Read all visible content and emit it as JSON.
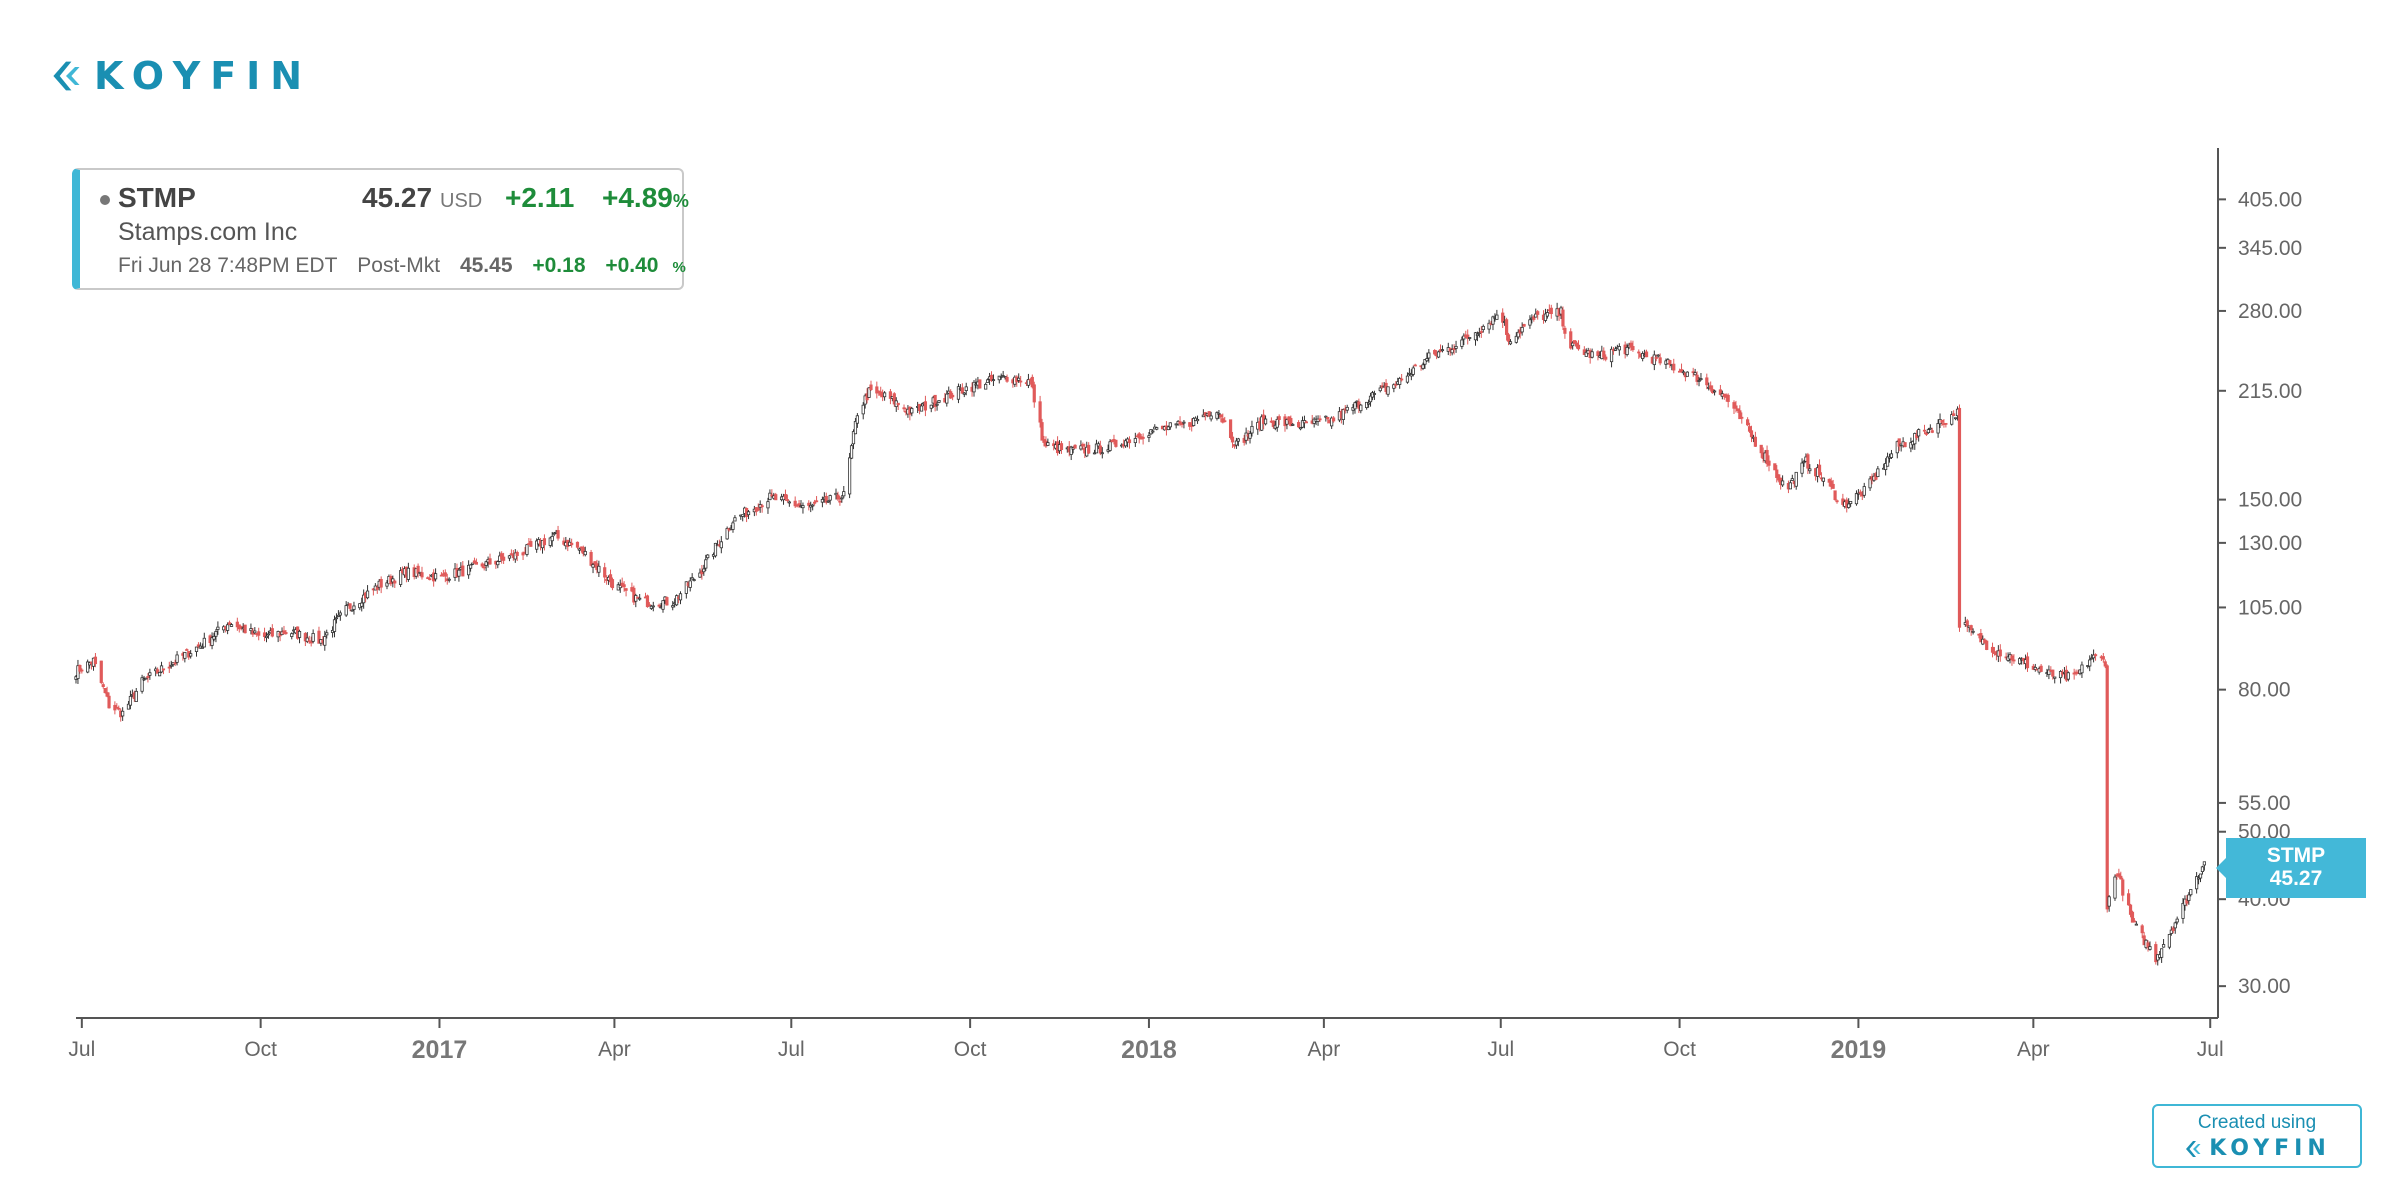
{
  "brand": {
    "logo_text": "KOYFIN",
    "accent_color": "#3fb7d6",
    "logo_color": "#1a8fb2",
    "created_using": "Created using"
  },
  "quote": {
    "symbol": "STMP",
    "price": "45.27",
    "currency": "USD",
    "change": "+2.11",
    "change_pct": "+4.89",
    "pct_sign": "%",
    "name": "Stamps.com Inc",
    "timestamp": "Fri Jun 28 7:48PM EDT",
    "post_label": "Post-Mkt",
    "post_price": "45.45",
    "post_change": "+0.18",
    "post_change_pct": "+0.40",
    "positive_color": "#1e8c3a"
  },
  "price_tag": {
    "symbol": "STMP",
    "value": "45.27"
  },
  "chart_data": {
    "type": "candlestick",
    "title": "",
    "xlabel": "",
    "ylabel": "",
    "y_scale": "log",
    "ylim": [
      27,
      480
    ],
    "y_ticks": [
      "405.00",
      "345.00",
      "280.00",
      "215.00",
      "150.00",
      "130.00",
      "105.00",
      "80.00",
      "55.00",
      "50.00",
      "40.00",
      "30.00"
    ],
    "x_range": [
      "2016-06-28",
      "2019-07-05"
    ],
    "x_ticks": [
      {
        "date": "2016-07-01",
        "label": "Jul",
        "major": false
      },
      {
        "date": "2016-10-01",
        "label": "Oct",
        "major": false
      },
      {
        "date": "2017-01-01",
        "label": "2017",
        "major": true
      },
      {
        "date": "2017-04-01",
        "label": "Apr",
        "major": false
      },
      {
        "date": "2017-07-01",
        "label": "Jul",
        "major": false
      },
      {
        "date": "2017-10-01",
        "label": "Oct",
        "major": false
      },
      {
        "date": "2018-01-01",
        "label": "2018",
        "major": true
      },
      {
        "date": "2018-04-01",
        "label": "Apr",
        "major": false
      },
      {
        "date": "2018-07-01",
        "label": "Jul",
        "major": false
      },
      {
        "date": "2018-10-01",
        "label": "Oct",
        "major": false
      },
      {
        "date": "2019-01-01",
        "label": "2019",
        "major": true
      },
      {
        "date": "2019-04-01",
        "label": "Apr",
        "major": false
      },
      {
        "date": "2019-07-01",
        "label": "Jul",
        "major": false
      }
    ],
    "up_color": "#333333",
    "down_color": "#e05a5a",
    "close_path": [
      [
        "2016-06-28",
        85
      ],
      [
        "2016-07-07",
        88
      ],
      [
        "2016-07-15",
        76
      ],
      [
        "2016-07-22",
        74
      ],
      [
        "2016-08-01",
        82
      ],
      [
        "2016-08-15",
        87
      ],
      [
        "2016-09-01",
        93
      ],
      [
        "2016-09-15",
        100
      ],
      [
        "2016-10-01",
        95
      ],
      [
        "2016-10-15",
        97
      ],
      [
        "2016-11-01",
        94
      ],
      [
        "2016-11-15",
        105
      ],
      [
        "2016-12-01",
        113
      ],
      [
        "2016-12-15",
        118
      ],
      [
        "2017-01-02",
        116
      ],
      [
        "2017-01-20",
        120
      ],
      [
        "2017-02-10",
        125
      ],
      [
        "2017-03-01",
        133
      ],
      [
        "2017-03-15",
        127
      ],
      [
        "2017-04-01",
        113
      ],
      [
        "2017-04-15",
        107
      ],
      [
        "2017-05-01",
        107
      ],
      [
        "2017-05-15",
        118
      ],
      [
        "2017-06-01",
        140
      ],
      [
        "2017-06-20",
        151
      ],
      [
        "2017-07-10",
        146
      ],
      [
        "2017-07-28",
        152
      ],
      [
        "2017-08-04",
        200
      ],
      [
        "2017-08-10",
        214
      ],
      [
        "2017-08-20",
        210
      ],
      [
        "2017-09-01",
        200
      ],
      [
        "2017-09-15",
        209
      ],
      [
        "2017-10-01",
        218
      ],
      [
        "2017-10-20",
        225
      ],
      [
        "2017-11-01",
        222
      ],
      [
        "2017-11-08",
        180
      ],
      [
        "2017-11-20",
        176
      ],
      [
        "2017-12-10",
        178
      ],
      [
        "2018-01-01",
        188
      ],
      [
        "2018-01-20",
        192
      ],
      [
        "2018-02-05",
        203
      ],
      [
        "2018-02-15",
        180
      ],
      [
        "2018-03-01",
        195
      ],
      [
        "2018-03-20",
        192
      ],
      [
        "2018-04-05",
        195
      ],
      [
        "2018-04-20",
        207
      ],
      [
        "2018-05-10",
        222
      ],
      [
        "2018-05-25",
        240
      ],
      [
        "2018-06-10",
        252
      ],
      [
        "2018-06-25",
        270
      ],
      [
        "2018-07-01",
        280
      ],
      [
        "2018-07-05",
        255
      ],
      [
        "2018-07-20",
        275
      ],
      [
        "2018-08-01",
        278
      ],
      [
        "2018-08-05",
        250
      ],
      [
        "2018-08-20",
        240
      ],
      [
        "2018-09-01",
        248
      ],
      [
        "2018-09-20",
        238
      ],
      [
        "2018-10-10",
        225
      ],
      [
        "2018-10-25",
        210
      ],
      [
        "2018-11-10",
        180
      ],
      [
        "2018-11-25",
        155
      ],
      [
        "2018-12-05",
        170
      ],
      [
        "2018-12-15",
        160
      ],
      [
        "2018-12-24",
        147
      ],
      [
        "2019-01-05",
        155
      ],
      [
        "2019-01-20",
        178
      ],
      [
        "2019-02-10",
        192
      ],
      [
        "2019-02-21",
        200
      ],
      [
        "2019-02-22",
        100
      ],
      [
        "2019-03-10",
        92
      ],
      [
        "2019-03-25",
        88
      ],
      [
        "2019-04-10",
        84
      ],
      [
        "2019-04-22",
        83
      ],
      [
        "2019-05-01",
        89
      ],
      [
        "2019-05-08",
        88
      ],
      [
        "2019-05-09",
        39
      ],
      [
        "2019-05-14",
        44
      ],
      [
        "2019-05-22",
        37
      ],
      [
        "2019-06-03",
        33
      ],
      [
        "2019-06-15",
        38
      ],
      [
        "2019-06-28",
        45.27
      ]
    ]
  }
}
